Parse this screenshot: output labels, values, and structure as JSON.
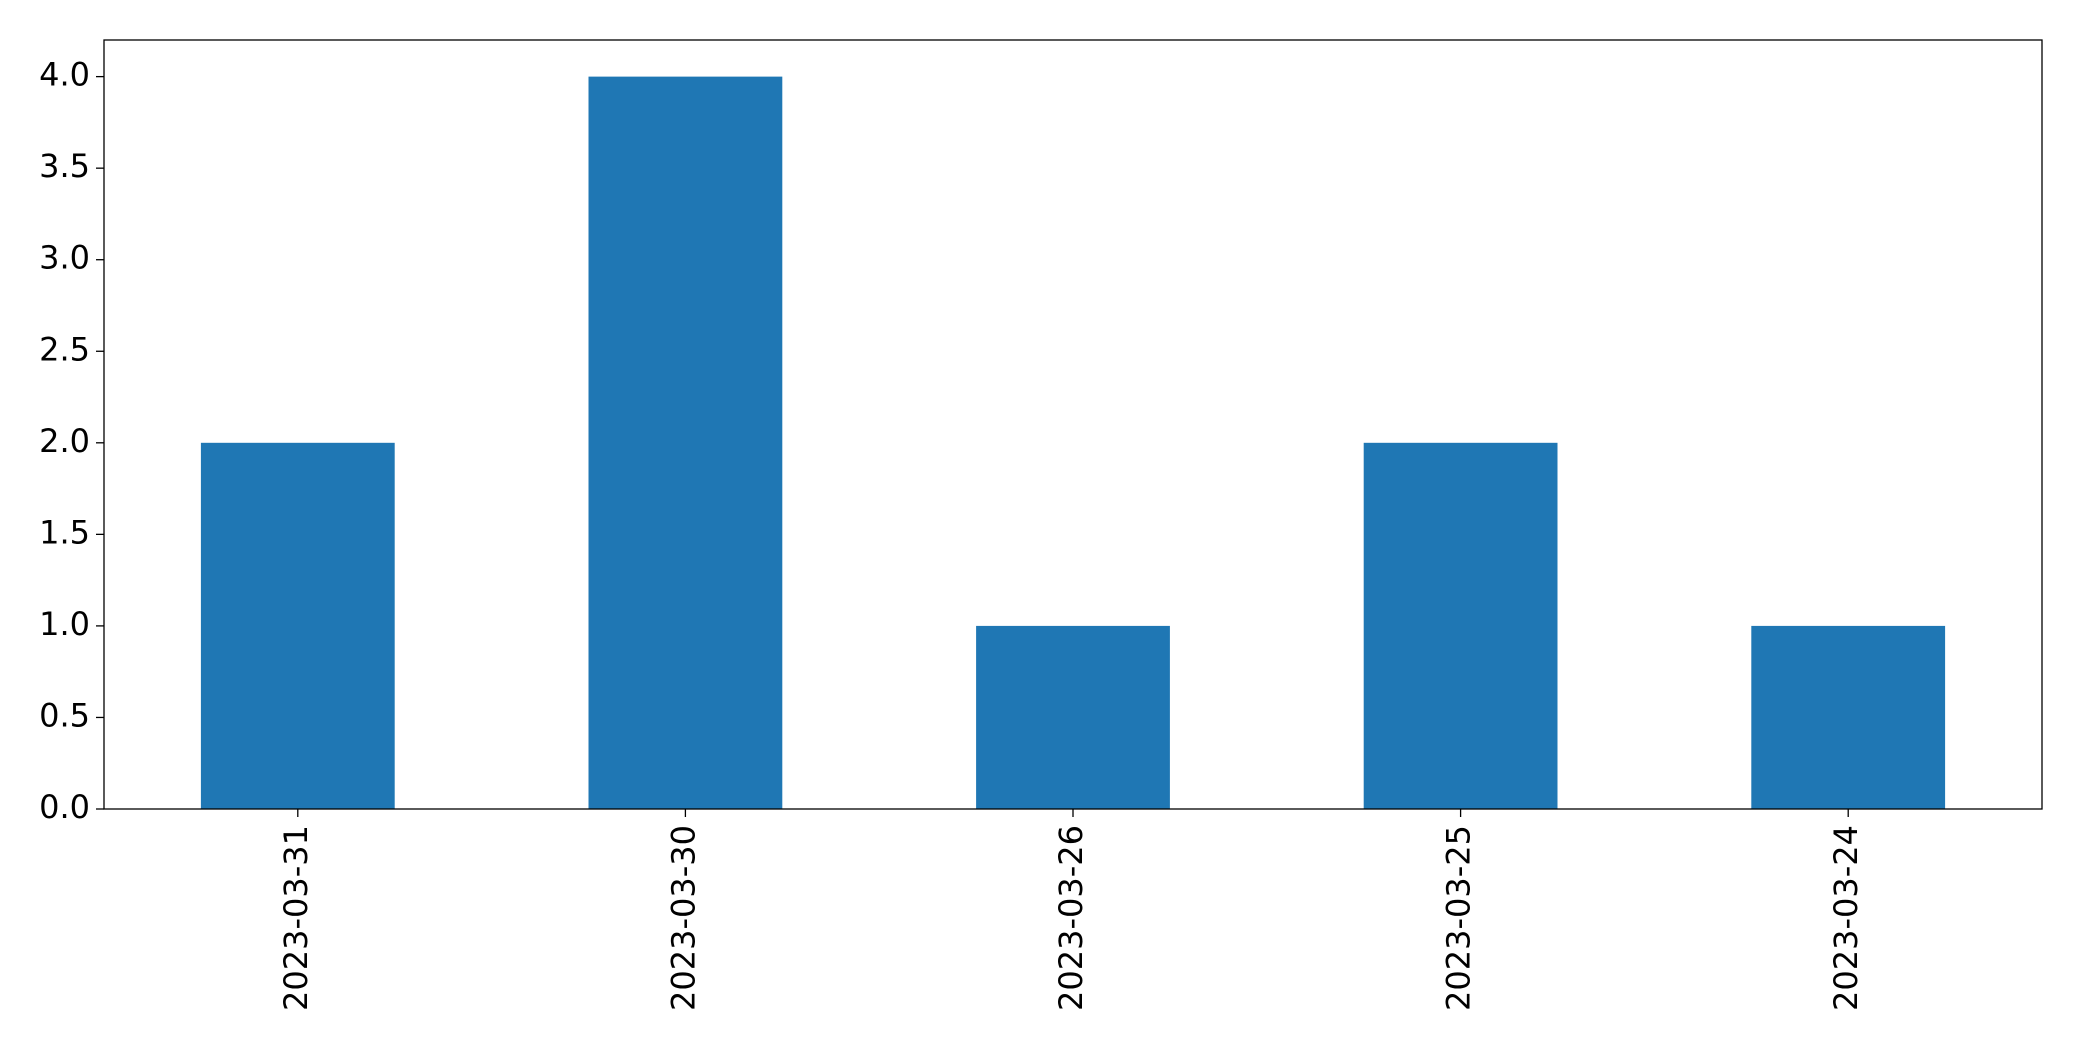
{
  "chart_data": {
    "type": "bar",
    "categories": [
      "2023-03-31",
      "2023-03-30",
      "2023-03-26",
      "2023-03-25",
      "2023-03-24"
    ],
    "values": [
      2,
      4,
      1,
      2,
      1
    ],
    "color": "#1f77b4",
    "ylim": [
      0,
      4.2
    ],
    "yticks": [
      {
        "value": 0,
        "label": "0.0"
      },
      {
        "value": 0.5,
        "label": "0.5"
      },
      {
        "value": 1,
        "label": "1.0"
      },
      {
        "value": 1.5,
        "label": "1.5"
      },
      {
        "value": 2,
        "label": "2.0"
      },
      {
        "value": 2.5,
        "label": "2.5"
      },
      {
        "value": 3,
        "label": "3.0"
      },
      {
        "value": 3.5,
        "label": "3.5"
      },
      {
        "value": 4,
        "label": "4.0"
      }
    ],
    "grid": false
  }
}
